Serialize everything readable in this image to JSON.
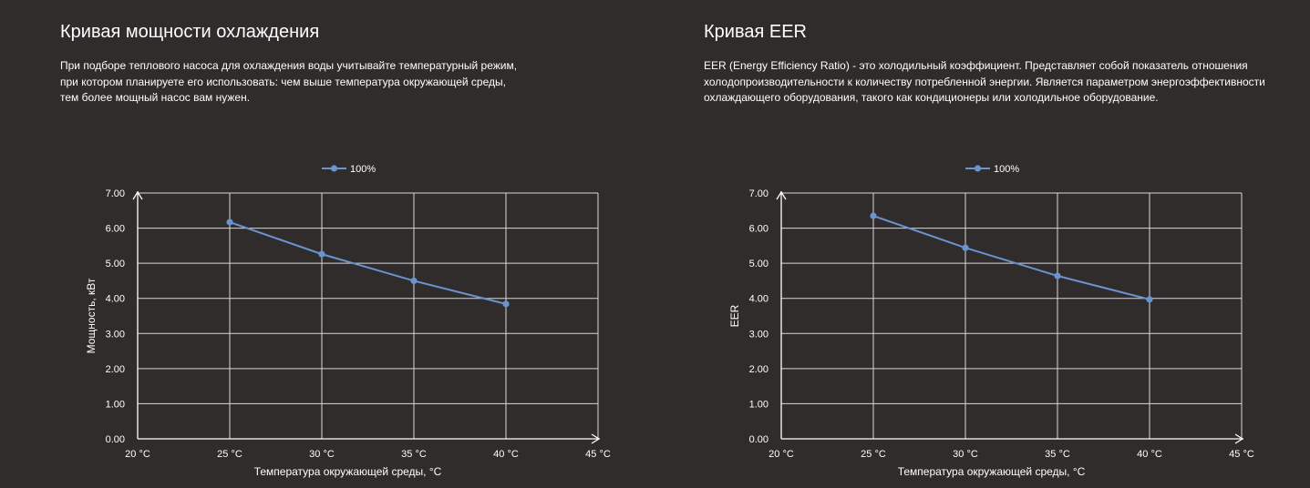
{
  "panels": [
    {
      "title": "Кривая мощности охлаждения",
      "description": [
        "При подборе теплового насоса для охлаждения воды учитывайте температурный режим,",
        "при котором планируете его использовать: чем выше температура окружающей среды,",
        "тем более мощный насос вам нужен."
      ]
    },
    {
      "title": "Кривая EER",
      "description": [
        "EER (Energy Efficiency Ratio) - это холодильный коэффициент. Представляет собой показатель отношения",
        "холодопроизводительности к количеству потребленной энергии. Является параметром энергоэффективности",
        "охлаждающего оборудования, такого как кондиционеры или холодильное оборудование."
      ]
    }
  ],
  "chart_data": [
    {
      "type": "line",
      "x": [
        25,
        30,
        35,
        40
      ],
      "x_tick_labels": [
        "20 °C",
        "25 °C",
        "30 °C",
        "35 °C",
        "40 °C",
        "45 °C"
      ],
      "xlim": [
        20,
        45
      ],
      "y_tick_labels": [
        "0.00",
        "1.00",
        "2.00",
        "3.00",
        "4.00",
        "5.00",
        "6.00",
        "7.00"
      ],
      "ylim": [
        0,
        7
      ],
      "xlabel": "Температура окружающей среды, °C",
      "ylabel": "Мощность, кВт",
      "grid": true,
      "legend_position": "top-center",
      "series": [
        {
          "name": "100%",
          "color": "#6a93cf",
          "values": [
            6.17,
            5.26,
            4.5,
            3.84
          ]
        }
      ]
    },
    {
      "type": "line",
      "x": [
        25,
        30,
        35,
        40
      ],
      "x_tick_labels": [
        "20 °C",
        "25 °C",
        "30 °C",
        "35 °C",
        "40 °C",
        "45 °C"
      ],
      "xlim": [
        20,
        45
      ],
      "y_tick_labels": [
        "0.00",
        "1.00",
        "2.00",
        "3.00",
        "4.00",
        "5.00",
        "6.00",
        "7.00"
      ],
      "ylim": [
        0,
        7
      ],
      "xlabel": "Температура окружающей среды, °C",
      "ylabel": "EER",
      "grid": true,
      "legend_position": "top-center",
      "series": [
        {
          "name": "100%",
          "color": "#6a93cf",
          "values": [
            6.35,
            5.44,
            4.64,
            3.97
          ]
        }
      ]
    }
  ]
}
